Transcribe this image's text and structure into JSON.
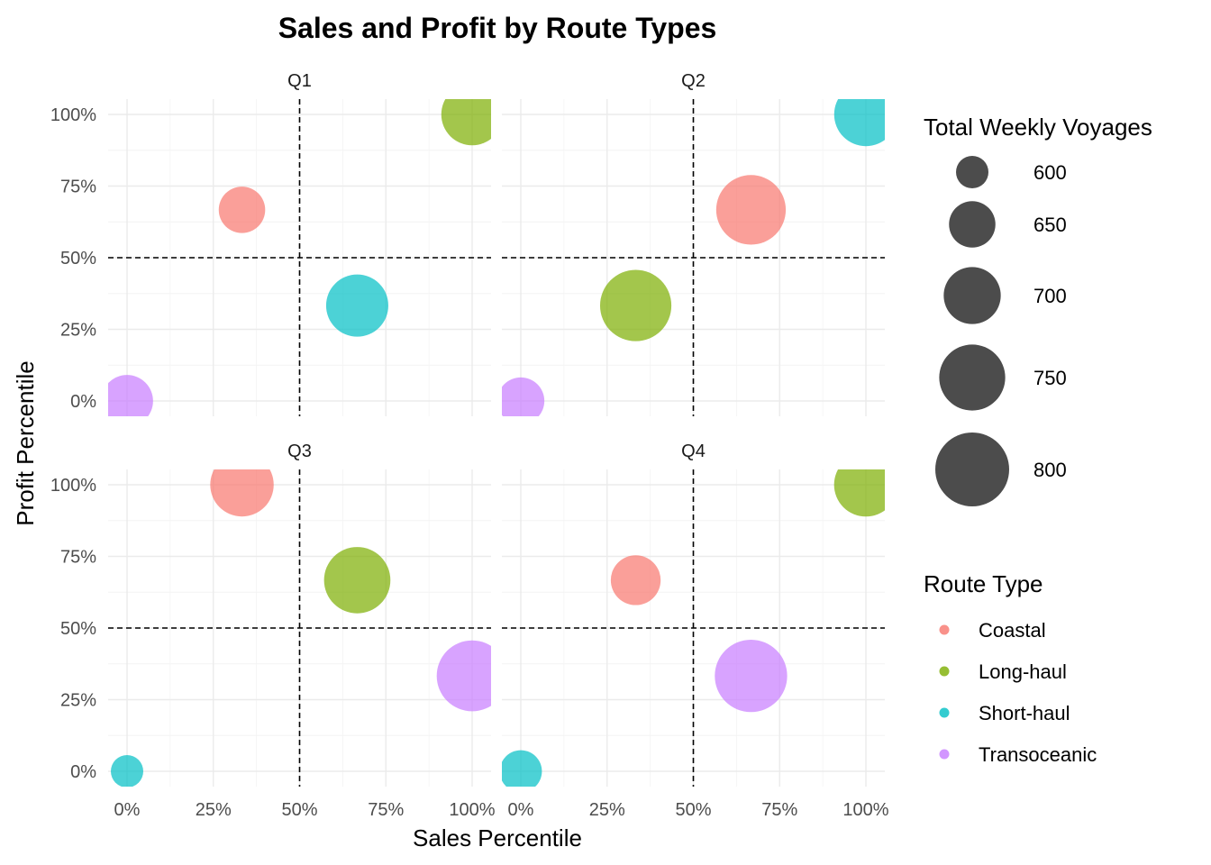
{
  "chart_data": {
    "type": "scatter",
    "title": "Sales and Profit by Route Types",
    "xlabel": "Sales Percentile",
    "ylabel": "Profit Percentile",
    "xlim": [
      0,
      1
    ],
    "ylim": [
      0,
      1
    ],
    "x_ticks": [
      "0%",
      "25%",
      "50%",
      "75%",
      "100%"
    ],
    "y_ticks": [
      "0%",
      "25%",
      "50%",
      "75%",
      "100%"
    ],
    "reference_lines": {
      "x": 0.5,
      "y": 0.5
    },
    "grid": true,
    "size_legend": {
      "title": "Total Weekly Voyages",
      "values": [
        600,
        650,
        700,
        750,
        800
      ],
      "labels": [
        "600",
        "650",
        "700",
        "750",
        "800"
      ]
    },
    "color_legend": {
      "title": "Route Type",
      "placement": "right",
      "entries": [
        {
          "name": "Coastal",
          "color": "#F8766D"
        },
        {
          "name": "Long-haul",
          "color": "#7CAE00"
        },
        {
          "name": "Short-haul",
          "color": "#00BFC4"
        },
        {
          "name": "Transoceanic",
          "color": "#C77CFF"
        }
      ]
    },
    "panels": [
      {
        "label": "Q1",
        "points": [
          {
            "route": "Coastal",
            "x": 0.333,
            "y": 0.667,
            "voyages": 650
          },
          {
            "route": "Long-haul",
            "x": 1.0,
            "y": 1.0,
            "voyages": 725
          },
          {
            "route": "Short-haul",
            "x": 0.667,
            "y": 0.333,
            "voyages": 728
          },
          {
            "route": "Transoceanic",
            "x": 0.0,
            "y": 0.0,
            "voyages": 675
          }
        ]
      },
      {
        "label": "Q2",
        "points": [
          {
            "route": "Coastal",
            "x": 0.667,
            "y": 0.667,
            "voyages": 772
          },
          {
            "route": "Long-haul",
            "x": 0.333,
            "y": 0.333,
            "voyages": 783
          },
          {
            "route": "Short-haul",
            "x": 1.0,
            "y": 1.0,
            "voyages": 735
          },
          {
            "route": "Transoceanic",
            "x": 0.0,
            "y": 0.0,
            "voyages": 653
          }
        ]
      },
      {
        "label": "Q3",
        "points": [
          {
            "route": "Coastal",
            "x": 0.333,
            "y": 1.0,
            "voyages": 735
          },
          {
            "route": "Long-haul",
            "x": 0.667,
            "y": 0.667,
            "voyages": 752
          },
          {
            "route": "Short-haul",
            "x": 0.0,
            "y": 0.0,
            "voyages": 560
          },
          {
            "route": "Transoceanic",
            "x": 1.0,
            "y": 0.333,
            "voyages": 780
          }
        ]
      },
      {
        "label": "Q4",
        "points": [
          {
            "route": "Coastal",
            "x": 0.333,
            "y": 0.667,
            "voyages": 665
          },
          {
            "route": "Long-haul",
            "x": 1.0,
            "y": 1.0,
            "voyages": 736
          },
          {
            "route": "Short-haul",
            "x": 0.0,
            "y": 0.0,
            "voyages": 633
          },
          {
            "route": "Transoceanic",
            "x": 0.667,
            "y": 0.333,
            "voyages": 790
          }
        ]
      }
    ]
  }
}
